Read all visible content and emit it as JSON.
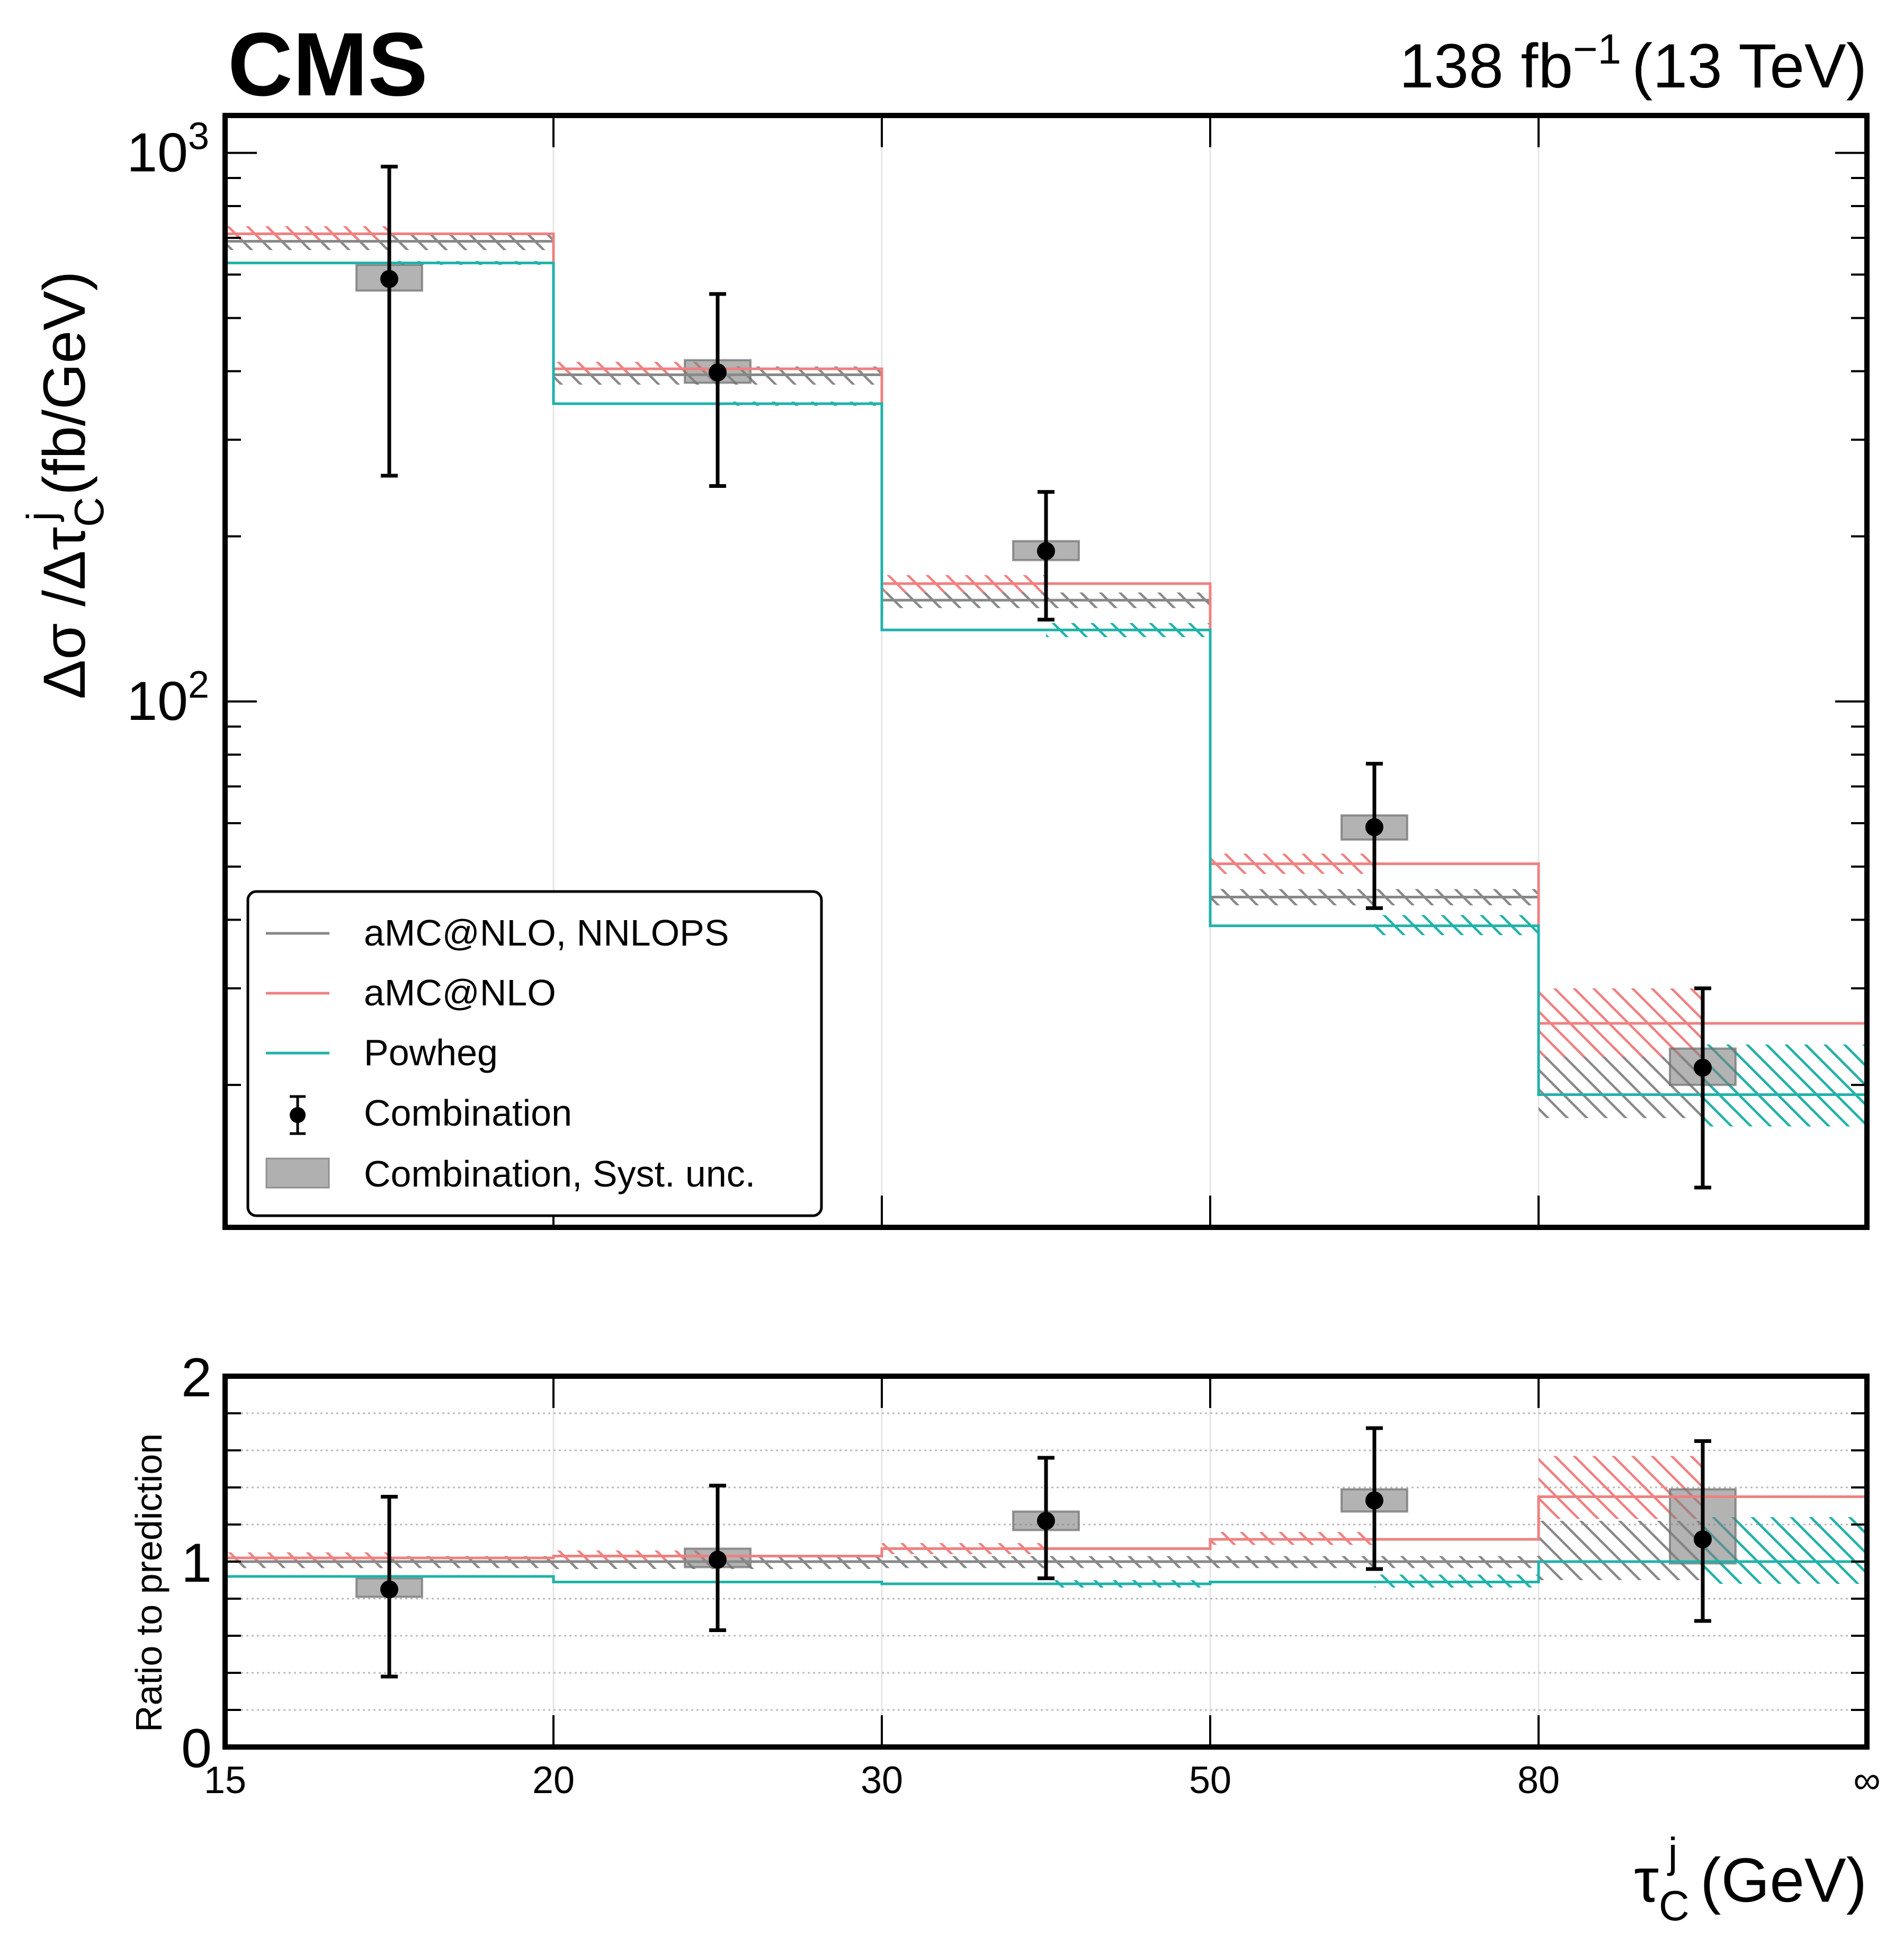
{
  "header": {
    "experiment": "CMS",
    "lumi_main": "138 fb",
    "lumi_sup": "−1",
    "lumi_energy": "(13 TeV)"
  },
  "chart_data": [
    {
      "panel": "main",
      "type": "bar",
      "subtype": "step-histogram-with-errorbars",
      "ylabel": "Δσ /Δτ_C^j (fb/GeV)",
      "ylabel_parts": {
        "pre": "Δσ /Δτ",
        "sub": "C",
        "sup": "j",
        "post": " (fb/GeV)"
      },
      "yscale": "log",
      "ylim": [
        11,
        1170
      ],
      "yticks": [
        {
          "value": 100,
          "label": "10",
          "exp": "2"
        },
        {
          "value": 1000,
          "label": "10",
          "exp": "3"
        }
      ],
      "x_bin_edges_labels": [
        "15",
        "20",
        "30",
        "50",
        "80",
        "∞"
      ],
      "categories": [
        "15–20",
        "20–30",
        "30–50",
        "50–80",
        "80–∞"
      ],
      "grid": "vertical at bin edges",
      "legend_position": "lower-left",
      "series": [
        {
          "name": "aMC@NLO, NNLOPS",
          "color": "#888888",
          "style": "step",
          "values": [
            690,
            394,
            153,
            44,
            19.2
          ],
          "band_low": [
            665,
            378,
            148,
            42.5,
            17.4
          ],
          "band_high": [
            712,
            408,
            158,
            45.5,
            23.5
          ],
          "band_extent": "full"
        },
        {
          "name": "aMC@NLO",
          "color": "#f08080",
          "style": "step",
          "values": [
            712,
            404,
            164,
            50.6,
            25.9
          ],
          "band_low": [
            690,
            392,
            158,
            48.5,
            22.5
          ],
          "band_high": [
            735,
            416,
            170,
            52.8,
            30.0
          ],
          "band_extent": "left-half"
        },
        {
          "name": "Powheg",
          "color": "#20b2aa",
          "style": "step",
          "values": [
            630,
            349,
            135,
            39,
            19.2
          ],
          "band_low": [
            625,
            346,
            131,
            37.5,
            16.8
          ],
          "band_high": [
            635,
            352,
            139,
            40.8,
            23.7
          ],
          "band_extent": "right-half"
        },
        {
          "name": "Combination",
          "color": "#000000",
          "style": "points",
          "values": [
            589,
            398,
            188,
            59,
            21.5
          ],
          "err_low": [
            258,
            247,
            141,
            42,
            13
          ],
          "err_high": [
            944,
            553,
            241,
            77,
            30
          ]
        },
        {
          "name": "Combination, Syst. unc.",
          "color": "#b0b0b0",
          "style": "box",
          "low": [
            561,
            381,
            181,
            56,
            20
          ],
          "high": [
            625,
            419,
            196,
            62,
            23.3
          ]
        }
      ]
    },
    {
      "panel": "ratio",
      "type": "bar",
      "subtype": "ratio",
      "ylabel": "Ratio to prediction",
      "ylim": [
        0,
        2
      ],
      "yticks": [
        {
          "value": 0,
          "label": "0"
        },
        {
          "value": 1,
          "label": "1"
        },
        {
          "value": 2,
          "label": "2"
        }
      ],
      "minor_gridlines": [
        0.2,
        0.4,
        0.6,
        0.8,
        1.2,
        1.4,
        1.6,
        1.8
      ],
      "xlabel": "τ_C^j (GeV)",
      "xlabel_parts": {
        "pre": "τ",
        "sub": "C",
        "sup": "j",
        "post": " (GeV)"
      },
      "x_bin_edges_labels": [
        "15",
        "20",
        "30",
        "50",
        "80",
        "∞"
      ],
      "categories": [
        "15–20",
        "20–30",
        "30–50",
        "50–80",
        "80–∞"
      ],
      "series": [
        {
          "name": "aMC@NLO, NNLOPS",
          "color": "#888888",
          "values": [
            1.0,
            1.0,
            1.0,
            1.0,
            1.0
          ],
          "band_low": [
            0.965,
            0.96,
            0.965,
            0.965,
            0.9
          ],
          "band_high": [
            1.03,
            1.03,
            1.03,
            1.03,
            1.22
          ],
          "band_extent": "full"
        },
        {
          "name": "aMC@NLO",
          "color": "#f08080",
          "values": [
            1.02,
            1.03,
            1.07,
            1.12,
            1.35
          ],
          "band_low": [
            0.99,
            1.0,
            1.04,
            1.09,
            1.23
          ],
          "band_high": [
            1.05,
            1.06,
            1.1,
            1.16,
            1.57
          ],
          "band_extent": "left-half"
        },
        {
          "name": "Powheg",
          "color": "#20b2aa",
          "values": [
            0.92,
            0.89,
            0.88,
            0.89,
            1.0
          ],
          "band_low": [
            0.915,
            0.885,
            0.86,
            0.86,
            0.88
          ],
          "band_high": [
            0.925,
            0.895,
            0.9,
            0.93,
            1.24
          ],
          "band_extent": "right-half"
        },
        {
          "name": "Combination",
          "color": "#000000",
          "values": [
            0.85,
            1.01,
            1.22,
            1.33,
            1.12
          ],
          "err_low": [
            0.38,
            0.63,
            0.91,
            0.96,
            0.68
          ],
          "err_high": [
            1.35,
            1.41,
            1.56,
            1.72,
            1.65
          ]
        },
        {
          "name": "Combination, Syst. unc.",
          "color": "#b0b0b0",
          "low": [
            0.81,
            0.97,
            1.17,
            1.27,
            0.99
          ],
          "high": [
            0.91,
            1.07,
            1.27,
            1.39,
            1.39
          ]
        }
      ]
    }
  ],
  "legend": {
    "items": [
      {
        "label": "aMC@NLO, NNLOPS",
        "kind": "line",
        "color": "#888888"
      },
      {
        "label": "aMC@NLO",
        "kind": "line",
        "color": "#f08080"
      },
      {
        "label": "Powheg",
        "kind": "line",
        "color": "#20b2aa"
      },
      {
        "label": "Combination",
        "kind": "errorbar",
        "color": "#000000"
      },
      {
        "label": "Combination, Syst. unc.",
        "kind": "box",
        "color": "#b0b0b0"
      }
    ]
  }
}
